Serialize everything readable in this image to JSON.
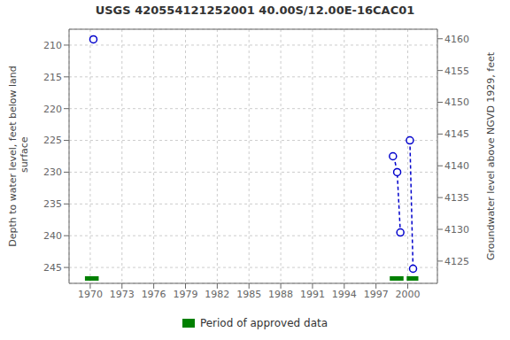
{
  "chart_data": {
    "type": "line",
    "title": "USGS 420554121252001 40.00S/12.00E-16CAC01",
    "y_label": "Depth to water level, feet below land\n surface",
    "y2_label": "Groundwater level above NGVD 1929, feet",
    "xlim": [
      1968.0,
      2002.8
    ],
    "xticks": [
      1970,
      1973,
      1976,
      1979,
      1982,
      1985,
      1988,
      1991,
      1994,
      1997,
      2000
    ],
    "ylim": [
      247.5,
      207.5
    ],
    "yticks": [
      210,
      215,
      220,
      225,
      230,
      235,
      240,
      245
    ],
    "y2lim": [
      4121.5,
      4161.5
    ],
    "y2ticks": [
      4125,
      4130,
      4135,
      4140,
      4145,
      4150,
      4155,
      4160
    ],
    "grid": true,
    "legend": "bottom",
    "series": [
      {
        "type": "line",
        "color": "#0000cc",
        "line_style": "dashed",
        "x": [
          1998.6,
          1998.75,
          1999.0,
          1999.3
        ],
        "values": [
          227.5,
          228.0,
          230.0,
          239.5
        ]
      },
      {
        "type": "line",
        "color": "#0000cc",
        "line_style": "dashed",
        "x": [
          2000.2,
          2000.5
        ],
        "values": [
          225.0,
          245.2
        ]
      },
      {
        "type": "scatter",
        "color": "#0000cc",
        "marker": "circle",
        "x": [
          1970.3,
          1998.6,
          1999.0,
          1999.3,
          2000.2,
          2000.5
        ],
        "values": [
          209.1,
          227.5,
          230.0,
          239.5,
          225.0,
          245.2
        ]
      },
      {
        "type": "span",
        "name": "Period of approved data",
        "color": "#008000",
        "start": [
          1969.5,
          1998.3,
          1999.9
        ],
        "end": [
          1970.8,
          1999.6,
          2001.0
        ]
      }
    ]
  }
}
